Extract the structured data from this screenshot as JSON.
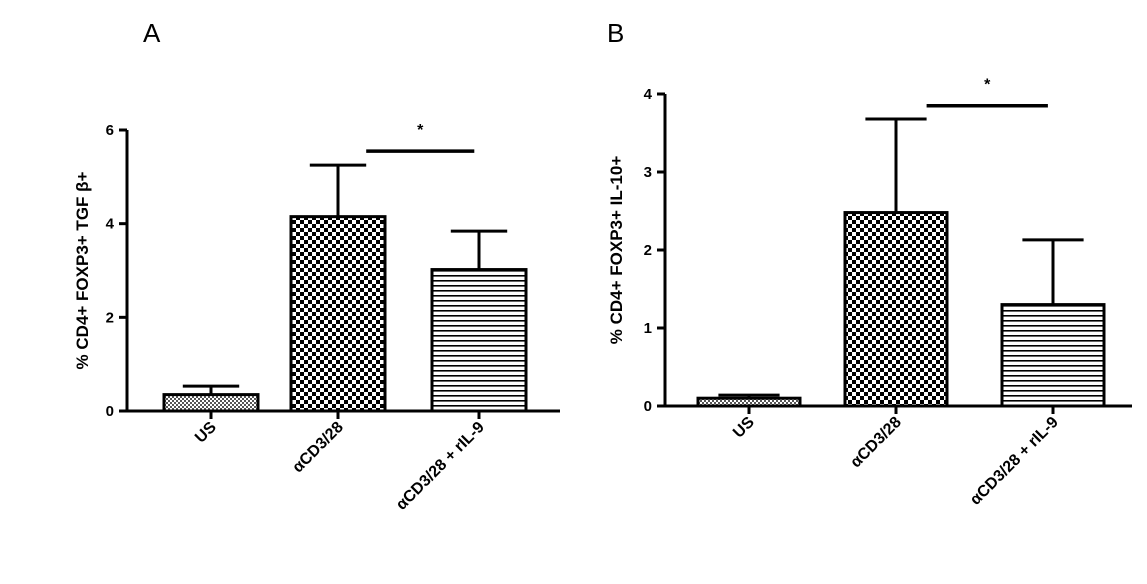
{
  "chart_data": [
    {
      "panel": "A",
      "type": "bar",
      "categories": [
        "US",
        "αCD3/28",
        "αCD3/28 + rIL-9"
      ],
      "values": [
        0.35,
        4.15,
        3.02
      ],
      "error": [
        0.18,
        1.1,
        0.82
      ],
      "ylabel": "% CD4+ FOXP3+ TGF β+",
      "ylim": [
        0,
        6
      ],
      "yticks": [
        "0",
        "2",
        "4",
        "6"
      ],
      "patterns": [
        "fine-check",
        "checker",
        "hstripes"
      ],
      "significance": {
        "from": 1,
        "to": 2,
        "label": "*",
        "y": 5.55
      }
    },
    {
      "panel": "B",
      "type": "bar",
      "categories": [
        "US",
        "αCD3/28",
        "αCD3/28 + rIL-9"
      ],
      "values": [
        0.1,
        2.48,
        1.3
      ],
      "error": [
        0.04,
        1.2,
        0.83
      ],
      "ylabel": "% CD4+ FOXP3+ IL-10+",
      "ylim": [
        0,
        4
      ],
      "yticks": [
        "0",
        "1",
        "2",
        "3",
        "4"
      ],
      "patterns": [
        "fine-check",
        "checker",
        "hstripes"
      ],
      "significance": {
        "from": 1,
        "to": 2,
        "label": "*",
        "y": 3.85
      }
    }
  ]
}
